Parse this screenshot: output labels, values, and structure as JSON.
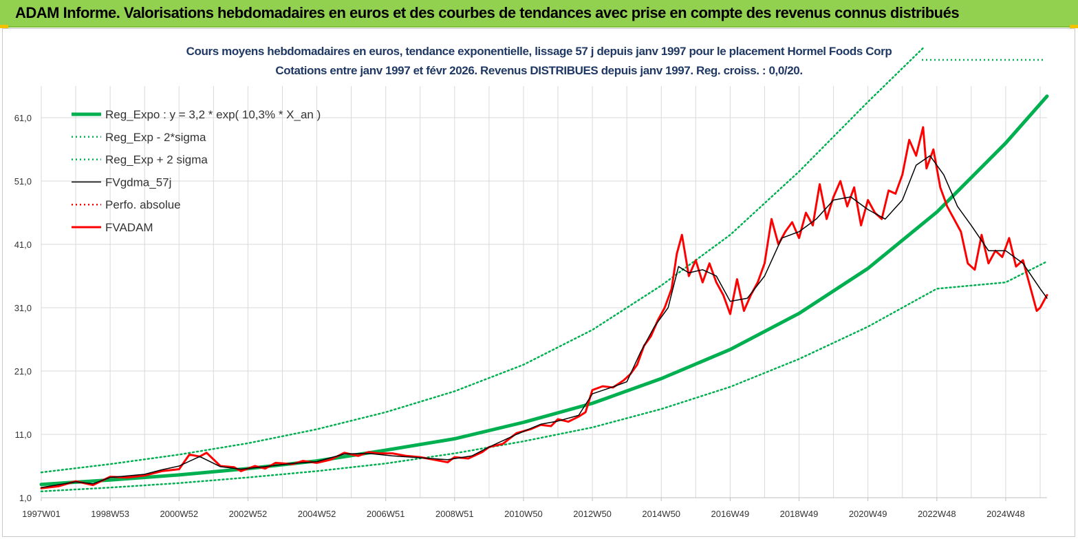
{
  "banner": {
    "title": "ADAM Informe. Valorisations hebdomadaires en euros et des courbes de tendances avec prise en compte des revenus connus distribués"
  },
  "colors": {
    "banner_bg": "#92d050",
    "trend": "#00b050",
    "black": "#000000",
    "red": "#ff0000",
    "title_text": "#1f3864"
  },
  "chart_data": {
    "type": "line",
    "title": "Cours moyens hebdomadaires en euros, tendance exponentielle, lissage 57 j depuis janv 1997 pour le placement Hormel Foods Corp",
    "subtitle": "Cotations entre janv 1997 et févr 2026. Revenus DISTRIBUES depuis janv 1997. Reg. croiss. : 0,0/20.",
    "xlabel": "",
    "ylabel": "",
    "ylim": [
      1,
      66
    ],
    "xlim": [
      1997.0,
      2026.2
    ],
    "grid": true,
    "legend_position": "top-left",
    "y_ticks": [
      "1,0",
      "11,0",
      "21,0",
      "31,0",
      "41,0",
      "51,0",
      "61,0"
    ],
    "x_ticks": [
      {
        "label": "1997W01",
        "x": 1997.0
      },
      {
        "label": "1998W53",
        "x": 1999.0
      },
      {
        "label": "2000W52",
        "x": 2001.0
      },
      {
        "label": "2002W52",
        "x": 2003.0
      },
      {
        "label": "2004W52",
        "x": 2005.0
      },
      {
        "label": "2006W51",
        "x": 2007.0
      },
      {
        "label": "2008W51",
        "x": 2009.0
      },
      {
        "label": "2010W50",
        "x": 2011.0
      },
      {
        "label": "2012W50",
        "x": 2013.0
      },
      {
        "label": "2014W50",
        "x": 2015.0
      },
      {
        "label": "2016W49",
        "x": 2017.0
      },
      {
        "label": "2018W49",
        "x": 2019.0
      },
      {
        "label": "2020W49",
        "x": 2021.0
      },
      {
        "label": "2022W48",
        "x": 2023.0
      },
      {
        "label": "2024W48",
        "x": 2025.0
      }
    ],
    "series": [
      {
        "name": "Reg_Expo : y = 3,2 * exp( 10,3% *  X_an )",
        "style": "solid-thick",
        "color": "#00b050",
        "x": [
          1997.0,
          1999.0,
          2001.0,
          2003.0,
          2005.0,
          2007.0,
          2009.0,
          2011.0,
          2013.0,
          2015.0,
          2017.0,
          2019.0,
          2021.0,
          2023.0,
          2025.0,
          2026.2
        ],
        "y": [
          3.1,
          3.8,
          4.6,
          5.6,
          6.8,
          8.5,
          10.3,
          12.9,
          15.9,
          19.8,
          24.4,
          30.1,
          37.2,
          46.1,
          57.0,
          64.4
        ]
      },
      {
        "name": "Reg_Exp - 2*sigma",
        "style": "dotted",
        "color": "#00b050",
        "x": [
          1997.0,
          1999.0,
          2001.0,
          2003.0,
          2005.0,
          2007.0,
          2009.0,
          2011.0,
          2013.0,
          2015.0,
          2017.0,
          2019.0,
          2021.0,
          2023.0,
          2025.0,
          2026.2
        ],
        "y": [
          2.0,
          2.6,
          3.3,
          4.2,
          5.2,
          6.4,
          8.0,
          9.9,
          12.1,
          15.0,
          18.5,
          22.9,
          28.0,
          34.0,
          35.0,
          38.3
        ]
      },
      {
        "name": "Reg_Exp + 2 sigma",
        "style": "dotted",
        "color": "#00b050",
        "x": [
          1997.0,
          1999.0,
          2001.0,
          2003.0,
          2005.0,
          2007.0,
          2009.0,
          2011.0,
          2013.0,
          2015.0,
          2017.0,
          2019.0,
          2021.0,
          2022.6
        ],
        "y": [
          5.0,
          6.3,
          7.8,
          9.6,
          11.8,
          14.5,
          17.8,
          22.0,
          27.5,
          34.5,
          42.5,
          52.5,
          63.5,
          72.0
        ]
      },
      {
        "name": "FVgdma_57j",
        "style": "solid",
        "color": "#000000",
        "x": [
          1997.0,
          1998.0,
          1998.5,
          1999.0,
          2000.0,
          2000.5,
          2001.0,
          2001.6,
          2002.2,
          2002.8,
          2003.5,
          2004.3,
          2005.0,
          2005.8,
          2006.5,
          2007.2,
          2008.0,
          2008.8,
          2009.5,
          2010.0,
          2010.8,
          2011.5,
          2012.0,
          2012.6,
          2013.0,
          2013.6,
          2014.0,
          2014.4,
          2014.8,
          2015.2,
          2015.5,
          2015.8,
          2016.2,
          2016.6,
          2017.0,
          2017.5,
          2018.0,
          2018.5,
          2019.0,
          2019.5,
          2020.0,
          2020.5,
          2021.0,
          2021.5,
          2022.0,
          2022.4,
          2022.8,
          2023.2,
          2023.6,
          2024.0,
          2024.5,
          2025.0,
          2025.5,
          2026.0,
          2026.2
        ],
        "y": [
          2.6,
          3.5,
          3.2,
          4.2,
          4.7,
          5.4,
          6.0,
          7.5,
          5.9,
          5.5,
          5.9,
          6.4,
          6.7,
          7.9,
          8.0,
          7.6,
          7.3,
          7.0,
          7.6,
          9.0,
          11.0,
          12.6,
          13.1,
          14.0,
          17.4,
          18.5,
          19.3,
          24.0,
          28.0,
          31.0,
          37.5,
          36.5,
          37.0,
          36.0,
          32.0,
          32.5,
          36.0,
          42.0,
          43.0,
          45.0,
          48.0,
          48.5,
          46.5,
          45.0,
          48.0,
          53.5,
          55.0,
          52.0,
          47.0,
          44.0,
          40.0,
          40.0,
          38.0,
          34.0,
          32.5
        ]
      },
      {
        "name": "Perfo. absolue",
        "style": "dotted",
        "color": "#ff0000",
        "x": [],
        "y": []
      },
      {
        "name": "FVADAM",
        "style": "solid-thick",
        "color": "#ff0000",
        "x": [
          1997.0,
          1997.5,
          1998.0,
          1998.5,
          1999.0,
          1999.5,
          2000.0,
          2000.5,
          2001.0,
          2001.3,
          2001.6,
          2001.8,
          2002.2,
          2002.6,
          2002.8,
          2003.2,
          2003.5,
          2003.8,
          2004.3,
          2004.6,
          2005.0,
          2005.4,
          2005.8,
          2006.2,
          2006.5,
          2006.8,
          2007.2,
          2007.6,
          2008.0,
          2008.4,
          2008.8,
          2009.0,
          2009.4,
          2009.8,
          2010.0,
          2010.4,
          2010.8,
          2011.2,
          2011.5,
          2011.8,
          2012.0,
          2012.3,
          2012.6,
          2012.8,
          2013.0,
          2013.3,
          2013.6,
          2013.9,
          2014.1,
          2014.3,
          2014.5,
          2014.7,
          2014.9,
          2015.1,
          2015.3,
          2015.45,
          2015.6,
          2015.8,
          2016.0,
          2016.2,
          2016.4,
          2016.6,
          2016.8,
          2017.0,
          2017.2,
          2017.4,
          2017.6,
          2017.8,
          2018.0,
          2018.2,
          2018.4,
          2018.6,
          2018.8,
          2019.0,
          2019.2,
          2019.4,
          2019.6,
          2019.8,
          2020.0,
          2020.2,
          2020.4,
          2020.6,
          2020.8,
          2021.0,
          2021.2,
          2021.4,
          2021.6,
          2021.8,
          2022.0,
          2022.2,
          2022.4,
          2022.6,
          2022.7,
          2022.9,
          2023.1,
          2023.3,
          2023.5,
          2023.7,
          2023.9,
          2024.1,
          2024.3,
          2024.5,
          2024.7,
          2024.9,
          2025.1,
          2025.3,
          2025.5,
          2025.7,
          2025.9,
          2026.0,
          2026.2
        ],
        "y": [
          2.5,
          2.8,
          3.6,
          3.0,
          4.3,
          4.2,
          4.5,
          5.2,
          5.5,
          7.8,
          7.5,
          8.1,
          6.0,
          5.8,
          5.2,
          6.0,
          5.6,
          6.5,
          6.3,
          6.8,
          6.5,
          7.0,
          8.1,
          7.6,
          8.2,
          8.0,
          8.0,
          7.6,
          7.4,
          7.0,
          6.6,
          7.4,
          7.2,
          8.2,
          9.0,
          9.5,
          11.2,
          11.8,
          12.5,
          12.3,
          13.4,
          13.0,
          13.8,
          14.5,
          18.0,
          18.6,
          18.4,
          19.5,
          20.5,
          22.0,
          25.0,
          26.5,
          29.0,
          31.0,
          34.0,
          39.5,
          42.5,
          36.0,
          38.5,
          35.0,
          38.0,
          35.0,
          33.0,
          30.0,
          35.5,
          30.5,
          33.0,
          35.0,
          38.0,
          45.0,
          41.0,
          43.0,
          44.5,
          42.0,
          46.0,
          44.0,
          50.5,
          45.0,
          48.5,
          51.0,
          47.0,
          50.0,
          44.0,
          48.0,
          46.0,
          45.0,
          49.5,
          49.0,
          52.0,
          57.5,
          55.0,
          59.5,
          53.0,
          56.0,
          50.0,
          47.0,
          45.0,
          43.0,
          38.0,
          37.0,
          42.5,
          38.0,
          40.0,
          39.0,
          42.0,
          37.5,
          38.5,
          34.5,
          30.5,
          31.0,
          33.0
        ]
      }
    ]
  }
}
